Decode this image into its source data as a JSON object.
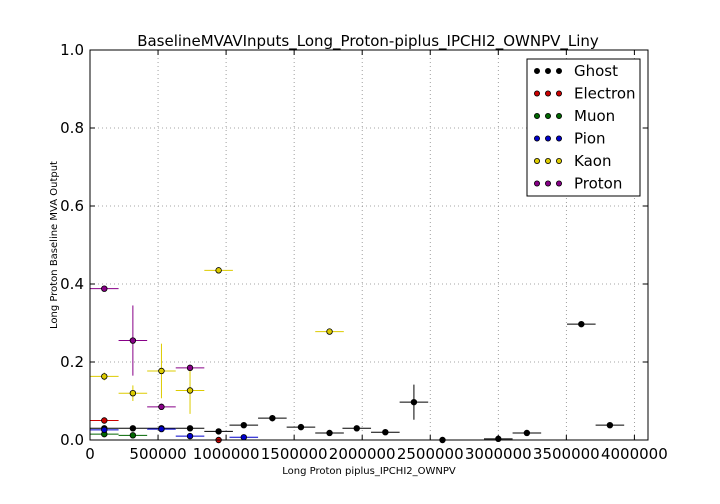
{
  "chart_data": {
    "type": "scatter",
    "title": "BaselineMVAVInputs_Long_Proton-piplus_IPCHI2_OWNPV_Liny",
    "xlabel": "Long Proton piplus_IPCHI2_OWNPV",
    "ylabel": "Long Proton Baseline MVA Output",
    "xlim": [
      0,
      4100000
    ],
    "ylim": [
      0,
      1.0
    ],
    "x_ticks": [
      0,
      500000,
      1000000,
      1500000,
      2000000,
      2500000,
      3000000,
      3500000,
      4000000
    ],
    "x_tick_labels": [
      "0",
      "500000",
      "1000000",
      "1500000",
      "2000000",
      "2500000",
      "3000000",
      "3500000",
      "4000000"
    ],
    "y_ticks": [
      0.0,
      0.2,
      0.4,
      0.6,
      0.8,
      1.0
    ],
    "y_tick_labels": [
      "0.0",
      "0.2",
      "0.4",
      "0.6",
      "0.8",
      "1.0"
    ],
    "grid": true,
    "legend_position": "top-right",
    "series": [
      {
        "name": "Ghost",
        "color": "#000000",
        "points": [
          {
            "x": 105000,
            "y": 0.03,
            "xerr": 105000,
            "yerr": 0.004
          },
          {
            "x": 315000,
            "y": 0.03,
            "xerr": 105000,
            "yerr": 0.004
          },
          {
            "x": 525000,
            "y": 0.03,
            "xerr": 105000,
            "yerr": 0.004
          },
          {
            "x": 735000,
            "y": 0.03,
            "xerr": 105000,
            "yerr": 0.004
          },
          {
            "x": 945000,
            "y": 0.022,
            "xerr": 105000,
            "yerr": 0.004
          },
          {
            "x": 1130000,
            "y": 0.038,
            "xerr": 105000,
            "yerr": 0.006
          },
          {
            "x": 1340000,
            "y": 0.056,
            "xerr": 105000,
            "yerr": 0.008
          },
          {
            "x": 1550000,
            "y": 0.033,
            "xerr": 105000,
            "yerr": 0.006
          },
          {
            "x": 1760000,
            "y": 0.018,
            "xerr": 105000,
            "yerr": 0.005
          },
          {
            "x": 1960000,
            "y": 0.03,
            "xerr": 105000,
            "yerr": 0.006
          },
          {
            "x": 2170000,
            "y": 0.02,
            "xerr": 105000,
            "yerr": 0.005
          },
          {
            "x": 2380000,
            "y": 0.097,
            "xerr": 105000,
            "yerr": 0.045
          },
          {
            "x": 2590000,
            "y": 0.0,
            "xerr": 105000,
            "yerr": 0.0
          },
          {
            "x": 3000000,
            "y": 0.003,
            "xerr": 105000,
            "yerr": 0.002
          },
          {
            "x": 3210000,
            "y": 0.018,
            "xerr": 105000,
            "yerr": 0.005
          },
          {
            "x": 3610000,
            "y": 0.297,
            "xerr": 105000,
            "yerr": 0.0
          },
          {
            "x": 3820000,
            "y": 0.038,
            "xerr": 105000,
            "yerr": 0.004
          }
        ]
      },
      {
        "name": "Electron",
        "color": "#cc0000",
        "points": [
          {
            "x": 105000,
            "y": 0.05,
            "xerr": 105000,
            "yerr": 0.005
          },
          {
            "x": 945000,
            "y": 0.0,
            "xerr": 105000,
            "yerr": 0.0
          }
        ]
      },
      {
        "name": "Muon",
        "color": "#006600",
        "points": [
          {
            "x": 105000,
            "y": 0.015,
            "xerr": 105000,
            "yerr": 0.004
          },
          {
            "x": 315000,
            "y": 0.012,
            "xerr": 105000,
            "yerr": 0.004
          }
        ]
      },
      {
        "name": "Pion",
        "color": "#0000cc",
        "points": [
          {
            "x": 105000,
            "y": 0.026,
            "xerr": 105000,
            "yerr": 0.003
          },
          {
            "x": 525000,
            "y": 0.028,
            "xerr": 105000,
            "yerr": 0.003
          },
          {
            "x": 735000,
            "y": 0.01,
            "xerr": 105000,
            "yerr": 0.003
          },
          {
            "x": 1130000,
            "y": 0.007,
            "xerr": 105000,
            "yerr": 0.003
          }
        ]
      },
      {
        "name": "Kaon",
        "color": "#ddcc00",
        "points": [
          {
            "x": 105000,
            "y": 0.163,
            "xerr": 105000,
            "yerr": 0.01
          },
          {
            "x": 315000,
            "y": 0.12,
            "xerr": 105000,
            "yerr": 0.02
          },
          {
            "x": 525000,
            "y": 0.177,
            "xerr": 105000,
            "yerr": 0.07
          },
          {
            "x": 735000,
            "y": 0.127,
            "xerr": 105000,
            "yerr": 0.06
          },
          {
            "x": 945000,
            "y": 0.435,
            "xerr": 105000,
            "yerr": 0.004
          },
          {
            "x": 1760000,
            "y": 0.278,
            "xerr": 105000,
            "yerr": 0.004
          }
        ]
      },
      {
        "name": "Proton",
        "color": "#880088",
        "points": [
          {
            "x": 105000,
            "y": 0.388,
            "xerr": 105000,
            "yerr": 0.004
          },
          {
            "x": 315000,
            "y": 0.255,
            "xerr": 105000,
            "yerr": 0.09
          },
          {
            "x": 525000,
            "y": 0.085,
            "xerr": 105000,
            "yerr": 0.008
          },
          {
            "x": 735000,
            "y": 0.185,
            "xerr": 105000,
            "yerr": 0.008
          }
        ]
      }
    ]
  }
}
